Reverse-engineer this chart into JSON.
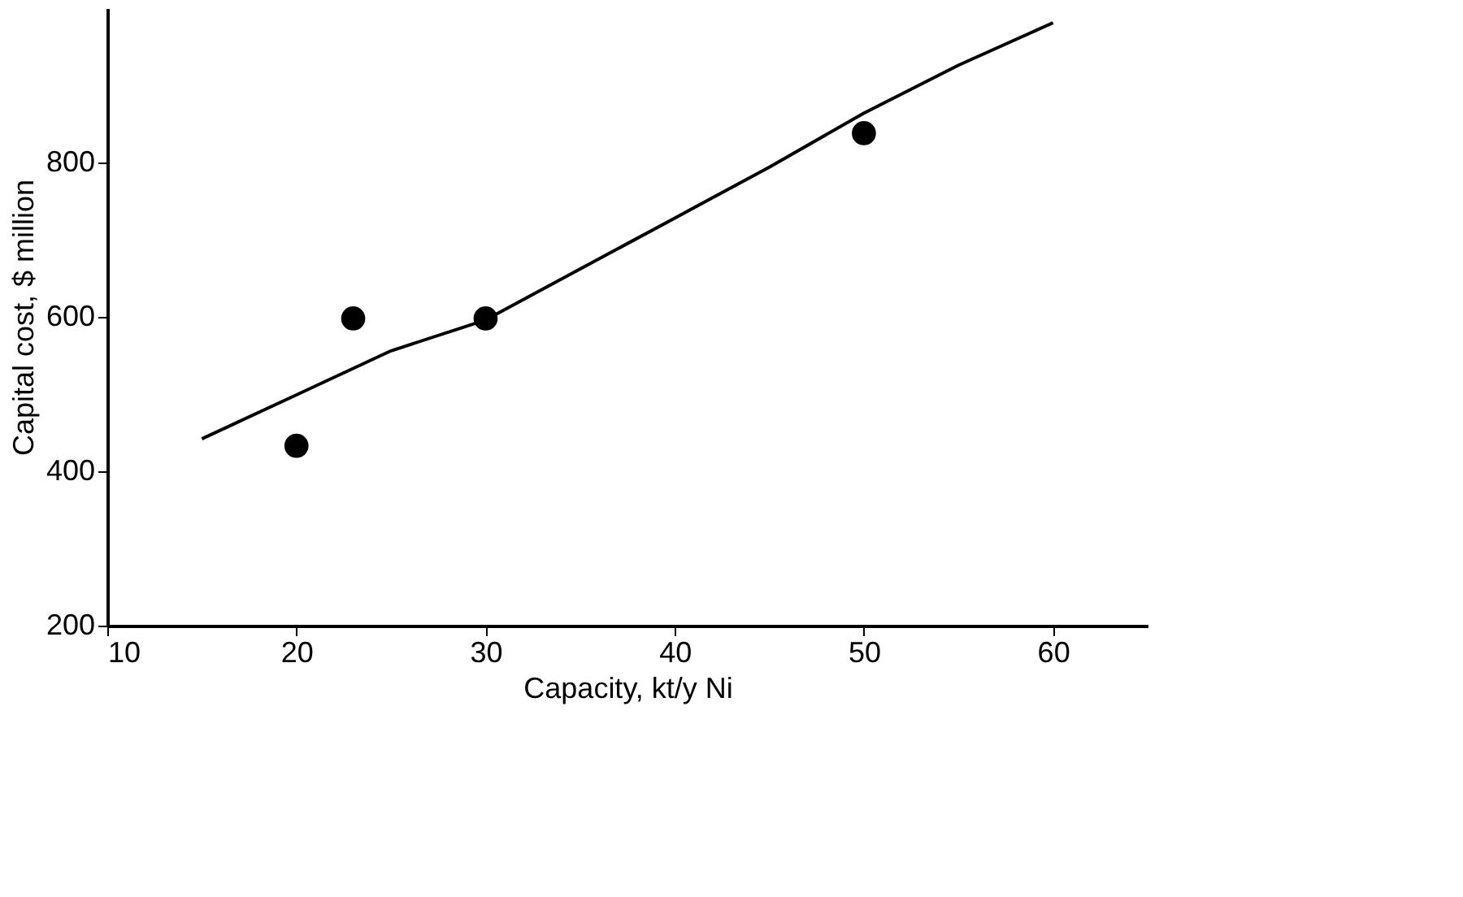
{
  "chart_data": {
    "type": "line",
    "xlabel": "Capacity, kt/y Ni",
    "ylabel": "Capital cost, $ million",
    "xlim": [
      10,
      65
    ],
    "xticks": [
      10,
      20,
      30,
      40,
      50,
      60
    ],
    "ylim": [
      200,
      1000
    ],
    "yticks": [
      200,
      400,
      600,
      800
    ],
    "grid": false,
    "series": [
      {
        "color": "#000000",
        "marker": "none",
        "line_style": "solid",
        "x": [
          15,
          20,
          25,
          30,
          35,
          40,
          45,
          50,
          55,
          60
        ],
        "values": [
          442,
          499,
          556,
          596,
          662,
          728,
          794,
          864,
          926,
          981
        ]
      },
      {
        "type": "scatter",
        "color": "#000000",
        "marker": "circle",
        "x": [
          20,
          23,
          30,
          50
        ],
        "values": [
          433,
          598,
          598,
          838
        ]
      }
    ]
  }
}
